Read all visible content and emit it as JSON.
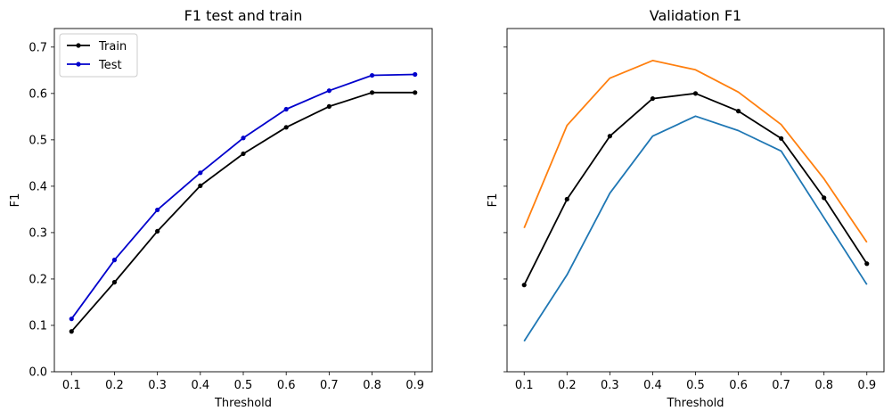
{
  "chart_data": [
    {
      "type": "line",
      "title": "F1 test and train",
      "xlabel": "Threshold",
      "ylabel": "F1",
      "x": [
        0.1,
        0.2,
        0.3,
        0.4,
        0.5,
        0.6,
        0.7,
        0.8,
        0.9
      ],
      "x_ticks": [
        "0.1",
        "0.2",
        "0.3",
        "0.4",
        "0.5",
        "0.6",
        "0.7",
        "0.8",
        "0.9"
      ],
      "y_ticks": [
        "0.0",
        "0.1",
        "0.2",
        "0.3",
        "0.4",
        "0.5",
        "0.6",
        "0.7"
      ],
      "ylim": [
        0,
        0.74
      ],
      "xlim": [
        0.06,
        0.94
      ],
      "legend": "upper left",
      "grid": false,
      "series": [
        {
          "name": "Train",
          "color": "#000000",
          "marker": "dot",
          "values": [
            0.087,
            0.193,
            0.303,
            0.401,
            0.47,
            0.527,
            0.572,
            0.602,
            0.602
          ]
        },
        {
          "name": "Test",
          "color": "#0000cc",
          "marker": "dot",
          "values": [
            0.114,
            0.241,
            0.349,
            0.429,
            0.504,
            0.566,
            0.606,
            0.639,
            0.641
          ]
        }
      ]
    },
    {
      "type": "line",
      "title": "Validation F1",
      "xlabel": "Threshold",
      "ylabel": "F1",
      "x": [
        0.1,
        0.2,
        0.3,
        0.4,
        0.5,
        0.6,
        0.7,
        0.8,
        0.9
      ],
      "x_ticks": [
        "0.1",
        "0.2",
        "0.3",
        "0.4",
        "0.5",
        "0.6",
        "0.7",
        "0.8",
        "0.9"
      ],
      "ylim": [
        0,
        0.74
      ],
      "xlim": [
        0.06,
        0.94
      ],
      "shared_y": true,
      "grid": false,
      "series": [
        {
          "color": "#ff7f0e",
          "marker": "none",
          "values": [
            0.31,
            0.531,
            0.633,
            0.671,
            0.651,
            0.603,
            0.533,
            0.416,
            0.279
          ]
        },
        {
          "color": "#000000",
          "marker": "dot",
          "values": [
            0.187,
            0.372,
            0.508,
            0.589,
            0.6,
            0.562,
            0.503,
            0.375,
            0.233
          ]
        },
        {
          "color": "#1f77b4",
          "marker": "none",
          "values": [
            0.066,
            0.209,
            0.385,
            0.508,
            0.551,
            0.52,
            0.476,
            0.332,
            0.188
          ]
        }
      ]
    }
  ]
}
